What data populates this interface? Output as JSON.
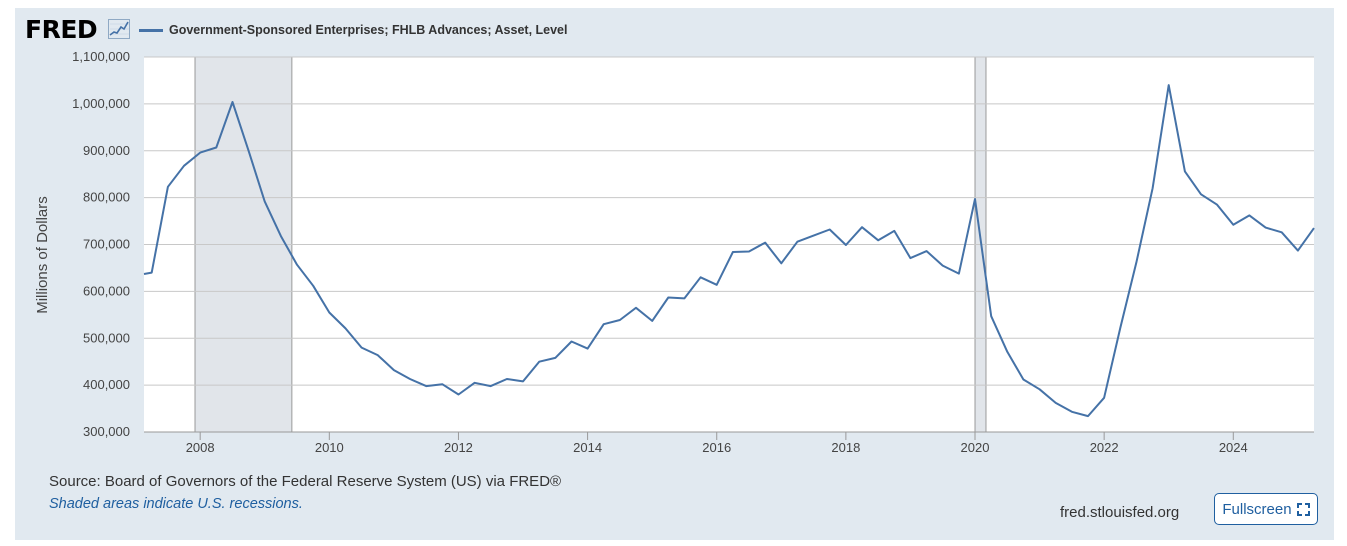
{
  "logo": {
    "text": "FRED",
    "icon": "chart-line-icon"
  },
  "legend": {
    "label": "Government-Sponsored Enterprises; FHLB Advances; Asset, Level",
    "color": "#4572a7"
  },
  "footer": {
    "source": "Source: Board of Governors of the Federal Reserve System (US) via FRED®",
    "note": "Shaded areas indicate U.S. recessions.",
    "site": "fred.stlouisfed.org",
    "fullscreen_label": "Fullscreen"
  },
  "colors": {
    "line": "#4572a7",
    "recession": "#e1e5ea",
    "grid": "#c8c8c8",
    "frame": "#e1e9f0"
  },
  "chart_data": {
    "type": "line",
    "xlabel": "",
    "ylabel": "Millions of Dollars",
    "xlim": [
      2007.13,
      2025.25
    ],
    "ylim": [
      300000,
      1100000
    ],
    "y_ticks": [
      300000,
      400000,
      500000,
      600000,
      700000,
      800000,
      900000,
      1000000,
      1100000
    ],
    "y_tick_labels": [
      "300,000",
      "400,000",
      "500,000",
      "600,000",
      "700,000",
      "800,000",
      "900,000",
      "1,000,000",
      "1,100,000"
    ],
    "x_ticks": [
      2008,
      2010,
      2012,
      2014,
      2016,
      2018,
      2020,
      2022,
      2024
    ],
    "x_tick_labels": [
      "2008",
      "2010",
      "2012",
      "2014",
      "2016",
      "2018",
      "2020",
      "2022",
      "2024"
    ],
    "grid": true,
    "recessions": [
      [
        2007.92,
        2009.42
      ],
      [
        2020.0,
        2020.17
      ]
    ],
    "series": [
      {
        "name": "Government-Sponsored Enterprises; FHLB Advances; Asset, Level",
        "x": [
          2007.13,
          2007.25,
          2007.5,
          2007.75,
          2008.0,
          2008.25,
          2008.5,
          2008.75,
          2009.0,
          2009.25,
          2009.5,
          2009.75,
          2010.0,
          2010.25,
          2010.5,
          2010.75,
          2011.0,
          2011.25,
          2011.5,
          2011.75,
          2012.0,
          2012.25,
          2012.5,
          2012.75,
          2013.0,
          2013.25,
          2013.5,
          2013.75,
          2014.0,
          2014.25,
          2014.5,
          2014.75,
          2015.0,
          2015.25,
          2015.5,
          2015.75,
          2016.0,
          2016.25,
          2016.5,
          2016.75,
          2017.0,
          2017.25,
          2017.5,
          2017.75,
          2018.0,
          2018.25,
          2018.5,
          2018.75,
          2019.0,
          2019.25,
          2019.5,
          2019.75,
          2020.0,
          2020.25,
          2020.5,
          2020.75,
          2021.0,
          2021.25,
          2021.5,
          2021.75,
          2022.0,
          2022.25,
          2022.5,
          2022.75,
          2023.0,
          2023.25,
          2023.5,
          2023.75,
          2024.0,
          2024.25,
          2024.5,
          2024.75,
          2025.0,
          2025.25
        ],
        "values": [
          637000,
          640000,
          823000,
          868000,
          896000,
          907000,
          1004000,
          900000,
          792000,
          718000,
          657000,
          612000,
          555000,
          521000,
          480000,
          464000,
          432000,
          413000,
          398000,
          402000,
          380000,
          405000,
          398000,
          413000,
          408000,
          450000,
          458000,
          493000,
          478000,
          530000,
          539000,
          565000,
          537000,
          587000,
          585000,
          630000,
          614000,
          684000,
          685000,
          704000,
          660000,
          706000,
          719000,
          732000,
          699000,
          737000,
          709000,
          729000,
          671000,
          686000,
          655000,
          638000,
          797000,
          547000,
          471000,
          412000,
          391000,
          362000,
          343000,
          334000,
          373000,
          522000,
          662000,
          820000,
          1040000,
          856000,
          807000,
          785000,
          742000,
          762000,
          736000,
          726000,
          687000,
          735000
        ]
      }
    ]
  }
}
